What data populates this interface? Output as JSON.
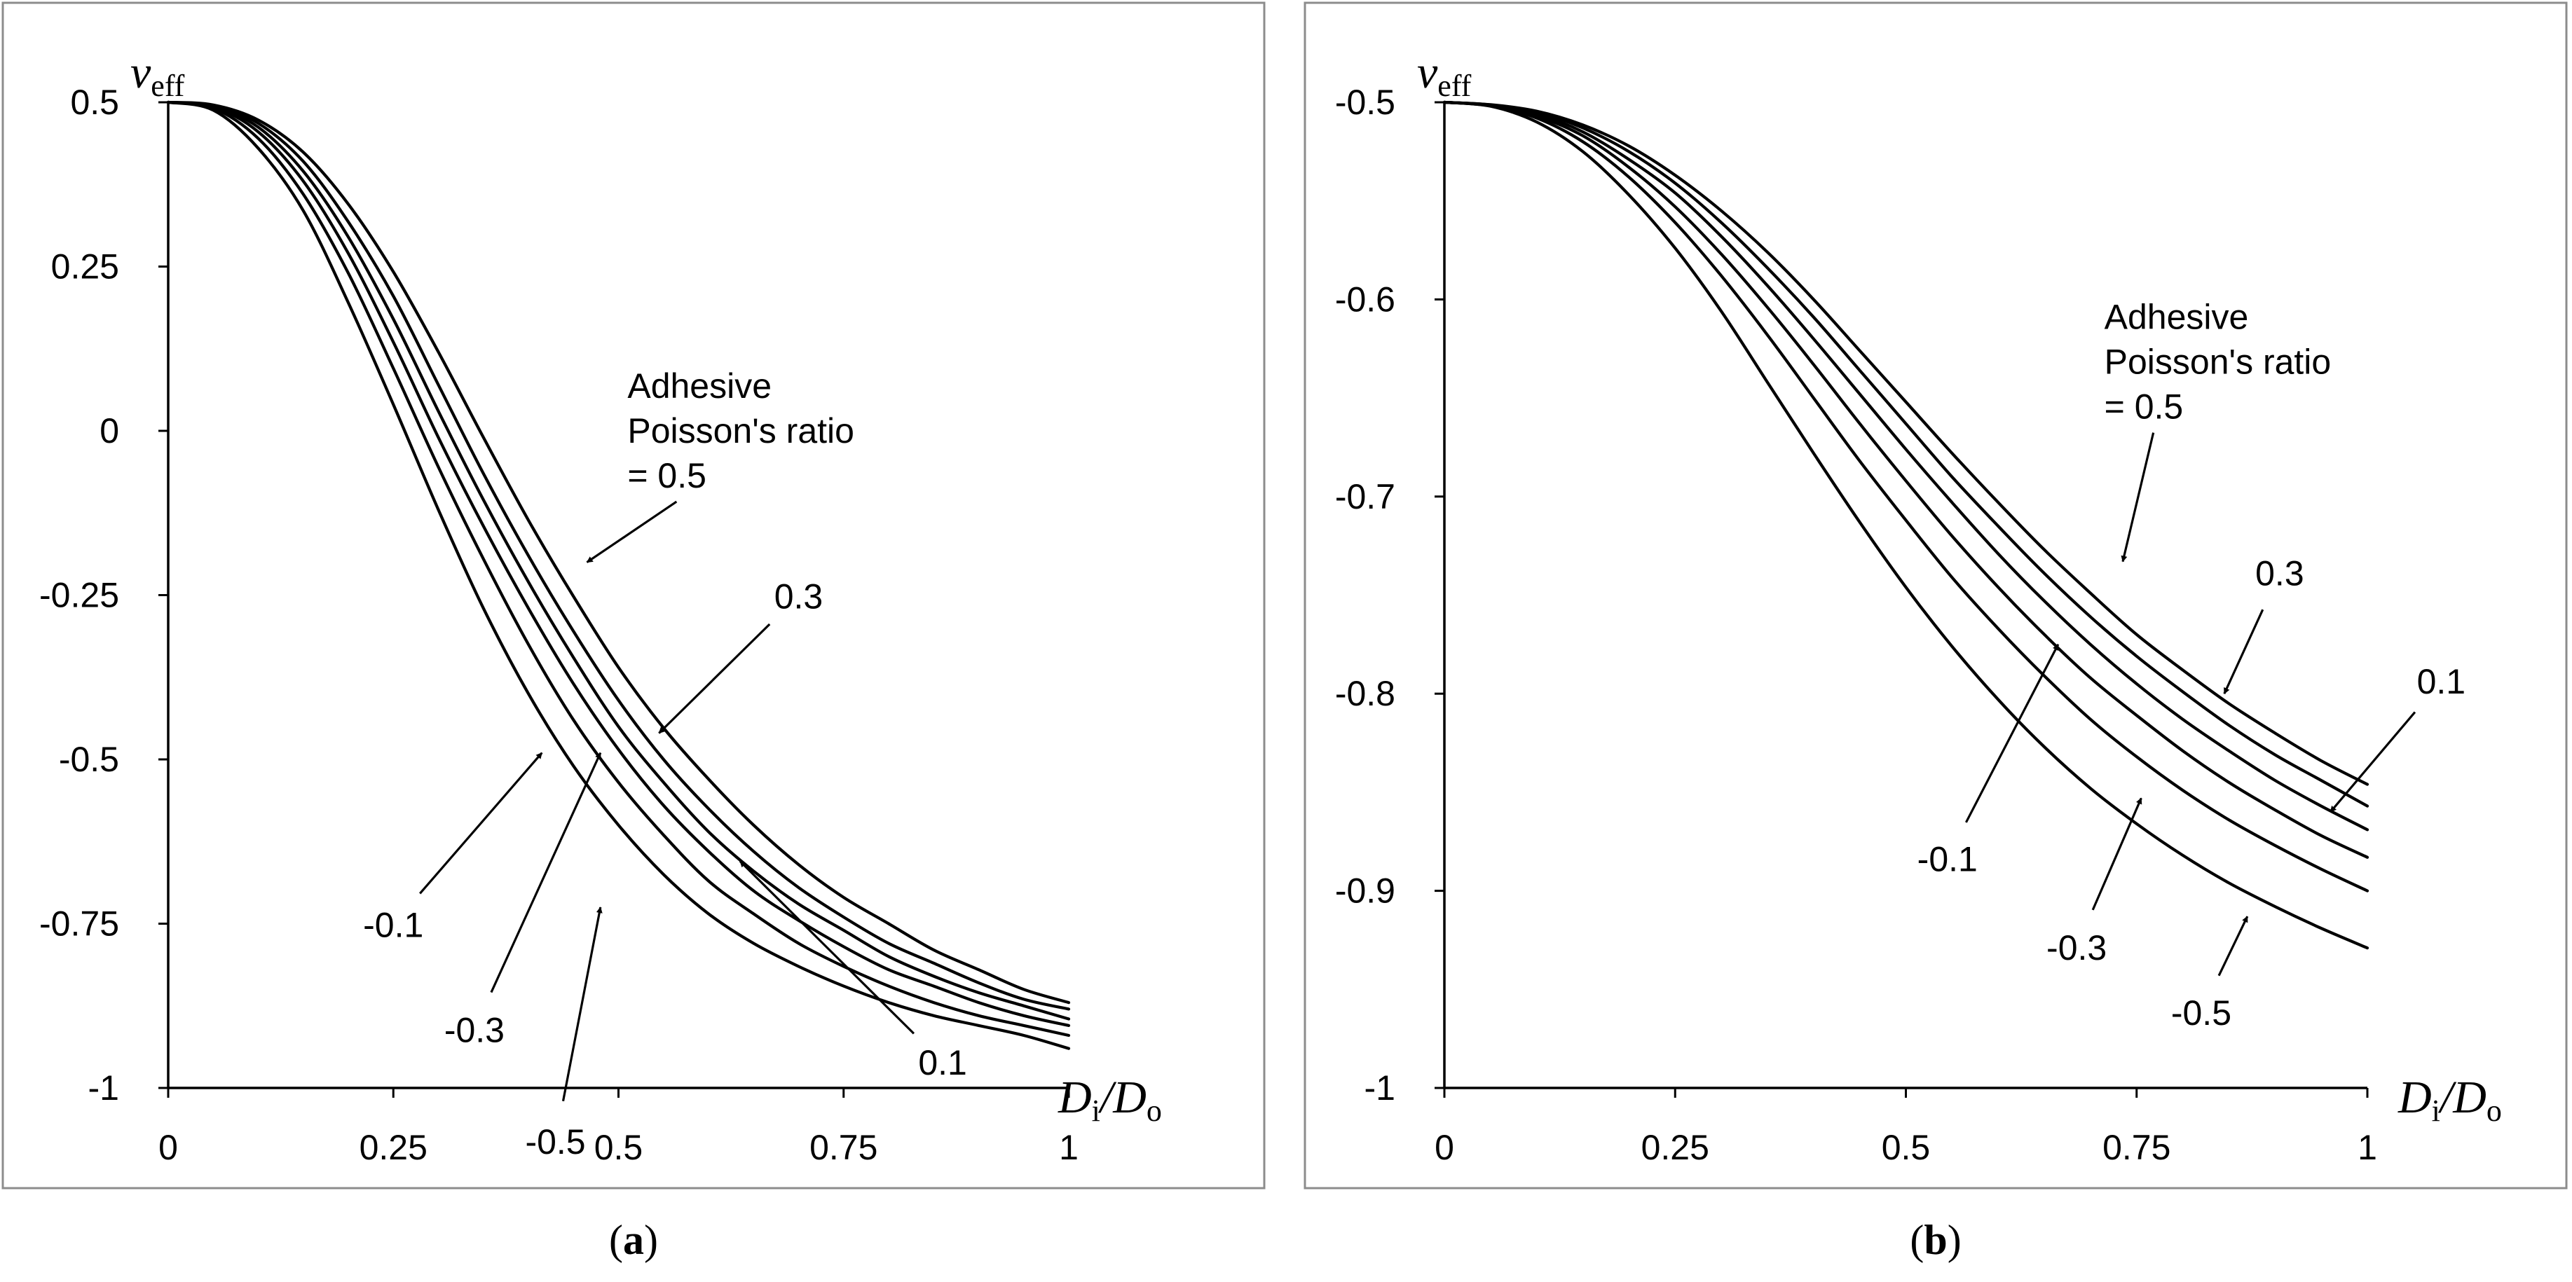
{
  "chart_data": [
    {
      "panel": "a",
      "panel_label": "a",
      "type": "line",
      "ylabel_main": "v",
      "ylabel_sub": "eff",
      "xlabel_parts": [
        "D",
        "i",
        "/",
        "D",
        "o"
      ],
      "xlim": [
        0,
        1
      ],
      "ylim": [
        -1,
        0.5
      ],
      "x_ticks": [
        0,
        0.25,
        0.5,
        0.75,
        1
      ],
      "x_tick_labels": [
        "0",
        "0.25",
        "0.5",
        "0.75",
        "1"
      ],
      "y_ticks": [
        0.5,
        0.25,
        0,
        -0.25,
        -0.5,
        -0.75,
        -1
      ],
      "y_tick_labels": [
        "0.5",
        "0.25",
        "0",
        "-0.25",
        "-0.5",
        "-0.75",
        "-1"
      ],
      "x": [
        0,
        0.05,
        0.1,
        0.15,
        0.2,
        0.25,
        0.3,
        0.35,
        0.4,
        0.45,
        0.5,
        0.55,
        0.6,
        0.65,
        0.7,
        0.75,
        0.8,
        0.85,
        0.9,
        0.95,
        1.0
      ],
      "series": [
        {
          "name": "0.5",
          "values": [
            0.5,
            0.496,
            0.473,
            0.424,
            0.345,
            0.242,
            0.12,
            -0.01,
            -0.136,
            -0.252,
            -0.36,
            -0.452,
            -0.53,
            -0.6,
            -0.66,
            -0.71,
            -0.75,
            -0.79,
            -0.82,
            -0.85,
            -0.87
          ]
        },
        {
          "name": "0.3",
          "values": [
            0.5,
            0.495,
            0.468,
            0.41,
            0.318,
            0.205,
            0.07,
            -0.065,
            -0.19,
            -0.305,
            -0.41,
            -0.5,
            -0.575,
            -0.64,
            -0.695,
            -0.74,
            -0.78,
            -0.81,
            -0.84,
            -0.865,
            -0.88
          ]
        },
        {
          "name": "0.1",
          "values": [
            0.5,
            0.494,
            0.462,
            0.395,
            0.295,
            0.17,
            0.03,
            -0.105,
            -0.23,
            -0.345,
            -0.45,
            -0.535,
            -0.61,
            -0.67,
            -0.72,
            -0.76,
            -0.8,
            -0.83,
            -0.855,
            -0.875,
            -0.895
          ]
        },
        {
          "name": "-0.1",
          "values": [
            0.5,
            0.493,
            0.455,
            0.38,
            0.27,
            0.135,
            -0.01,
            -0.145,
            -0.27,
            -0.385,
            -0.485,
            -0.57,
            -0.64,
            -0.7,
            -0.745,
            -0.785,
            -0.82,
            -0.845,
            -0.87,
            -0.89,
            -0.905
          ]
        },
        {
          "name": "-0.3",
          "values": [
            0.5,
            0.491,
            0.445,
            0.36,
            0.24,
            0.095,
            -0.055,
            -0.195,
            -0.325,
            -0.44,
            -0.535,
            -0.615,
            -0.685,
            -0.735,
            -0.78,
            -0.815,
            -0.845,
            -0.87,
            -0.89,
            -0.905,
            -0.92
          ]
        },
        {
          "name": "-0.5",
          "values": [
            0.5,
            0.488,
            0.43,
            0.335,
            0.195,
            0.04,
            -0.12,
            -0.27,
            -0.4,
            -0.51,
            -0.6,
            -0.675,
            -0.735,
            -0.78,
            -0.815,
            -0.845,
            -0.87,
            -0.89,
            -0.905,
            -0.92,
            -0.94
          ]
        }
      ],
      "annotations": {
        "legend_lines": [
          "Adhesive",
          "Poisson's ratio",
          "= 0.5"
        ],
        "labels": [
          {
            "series": "0.3",
            "text": "0.3",
            "label_x": 0.7,
            "label_y": -0.27,
            "tip_x": 0.545,
            "tip_y": -0.46
          },
          {
            "series": "0.1",
            "text": "0.1",
            "label_x": 0.86,
            "label_y": -0.98,
            "tip_x": 0.635,
            "tip_y": -0.655
          },
          {
            "series": "-0.1",
            "text": "-0.1",
            "label_x": 0.25,
            "label_y": -0.77,
            "tip_x": 0.415,
            "tip_y": -0.49
          },
          {
            "series": "-0.3",
            "text": "-0.3",
            "label_x": 0.34,
            "label_y": -0.93,
            "tip_x": 0.48,
            "tip_y": -0.49
          },
          {
            "series": "-0.5",
            "text": "-0.5",
            "label_x": 0.43,
            "label_y": -1.1,
            "tip_x": 0.48,
            "tip_y": -0.725
          }
        ],
        "legend_arrow_tip": [
          0.465,
          -0.2
        ]
      }
    },
    {
      "panel": "b",
      "panel_label": "b",
      "type": "line",
      "ylabel_main": "v",
      "ylabel_sub": "eff",
      "xlabel_parts": [
        "D",
        "i",
        "/",
        "D",
        "o"
      ],
      "xlim": [
        0,
        1
      ],
      "ylim": [
        -1,
        -0.5
      ],
      "x_ticks": [
        0,
        0.25,
        0.5,
        0.75,
        1
      ],
      "x_tick_labels": [
        "0",
        "0.25",
        "0.5",
        "0.75",
        "1"
      ],
      "y_ticks": [
        -0.5,
        -0.6,
        -0.7,
        -0.8,
        -0.9,
        -1
      ],
      "y_tick_labels": [
        "-0.5",
        "-0.6",
        "-0.7",
        "-0.8",
        "-0.9",
        "-1"
      ],
      "x": [
        0,
        0.05,
        0.1,
        0.15,
        0.2,
        0.25,
        0.3,
        0.35,
        0.4,
        0.45,
        0.5,
        0.55,
        0.6,
        0.65,
        0.7,
        0.75,
        0.8,
        0.85,
        0.9,
        0.95,
        1.0
      ],
      "series": [
        {
          "name": "0.5",
          "values": [
            -0.5,
            -0.5012,
            -0.5045,
            -0.5115,
            -0.5222,
            -0.537,
            -0.555,
            -0.576,
            -0.6,
            -0.626,
            -0.652,
            -0.678,
            -0.703,
            -0.727,
            -0.749,
            -0.77,
            -0.788,
            -0.805,
            -0.82,
            -0.834,
            -0.846
          ]
        },
        {
          "name": "0.3",
          "values": [
            -0.5,
            -0.5013,
            -0.505,
            -0.513,
            -0.525,
            -0.541,
            -0.561,
            -0.584,
            -0.609,
            -0.636,
            -0.663,
            -0.69,
            -0.715,
            -0.739,
            -0.761,
            -0.781,
            -0.799,
            -0.816,
            -0.831,
            -0.844,
            -0.857
          ]
        },
        {
          "name": "0.1",
          "values": [
            -0.5,
            -0.5015,
            -0.506,
            -0.515,
            -0.529,
            -0.546,
            -0.568,
            -0.593,
            -0.62,
            -0.648,
            -0.676,
            -0.703,
            -0.729,
            -0.753,
            -0.775,
            -0.795,
            -0.813,
            -0.829,
            -0.844,
            -0.857,
            -0.869
          ]
        },
        {
          "name": "-0.1",
          "values": [
            -0.5,
            -0.5016,
            -0.507,
            -0.517,
            -0.533,
            -0.553,
            -0.577,
            -0.604,
            -0.633,
            -0.663,
            -0.692,
            -0.72,
            -0.746,
            -0.77,
            -0.792,
            -0.811,
            -0.829,
            -0.845,
            -0.859,
            -0.872,
            -0.883
          ]
        },
        {
          "name": "-0.3",
          "values": [
            -0.5,
            -0.5018,
            -0.508,
            -0.52,
            -0.538,
            -0.561,
            -0.588,
            -0.618,
            -0.65,
            -0.682,
            -0.712,
            -0.741,
            -0.767,
            -0.791,
            -0.813,
            -0.832,
            -0.849,
            -0.864,
            -0.877,
            -0.889,
            -0.9
          ]
        },
        {
          "name": "-0.5",
          "values": [
            -0.5,
            -0.502,
            -0.51,
            -0.525,
            -0.547,
            -0.574,
            -0.606,
            -0.642,
            -0.678,
            -0.713,
            -0.746,
            -0.776,
            -0.803,
            -0.827,
            -0.848,
            -0.866,
            -0.882,
            -0.896,
            -0.908,
            -0.919,
            -0.929
          ]
        }
      ],
      "annotations": {
        "legend_lines": [
          "Adhesive",
          "Poisson's ratio",
          "= 0.5"
        ],
        "labels": [
          {
            "series": "0.3",
            "text": "0.3",
            "label_x": 0.905,
            "label_y": -0.745,
            "tip_x": 0.845,
            "tip_y": -0.8
          },
          {
            "series": "0.1",
            "text": "0.1",
            "label_x": 1.08,
            "label_y": -0.8,
            "tip_x": 0.96,
            "tip_y": -0.86
          },
          {
            "series": "-0.1",
            "text": "-0.1",
            "label_x": 0.545,
            "label_y": -0.89,
            "tip_x": 0.665,
            "tip_y": -0.775
          },
          {
            "series": "-0.3",
            "text": "-0.3",
            "label_x": 0.685,
            "label_y": -0.935,
            "tip_x": 0.755,
            "tip_y": -0.853
          },
          {
            "series": "-0.5",
            "text": "-0.5",
            "label_x": 0.82,
            "label_y": -0.968,
            "tip_x": 0.87,
            "tip_y": -0.913
          }
        ],
        "legend_arrow_tip": [
          0.735,
          -0.733
        ]
      }
    }
  ]
}
